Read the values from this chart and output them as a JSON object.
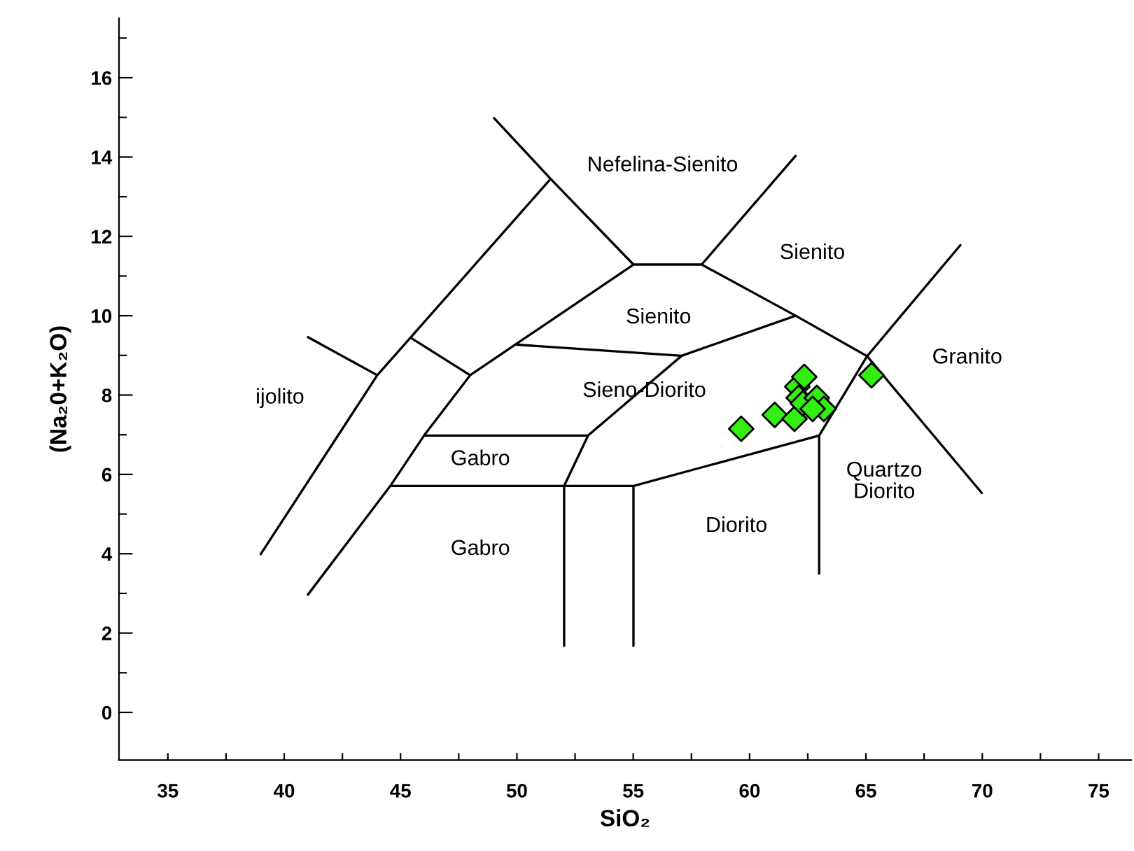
{
  "chart_data": {
    "type": "scatter",
    "xlabel": "SiO₂",
    "ylabel": "(Na₂0+K₂O)",
    "xlim": [
      32.9,
      76.4
    ],
    "ylim": [
      -1.2,
      17.5
    ],
    "xticks": [
      35,
      {
        "value": 37.5,
        "label": null
      },
      40,
      {
        "value": 42.5,
        "label": null
      },
      45,
      {
        "value": 47.5,
        "label": null
      },
      50,
      {
        "value": 52.5,
        "label": null
      },
      55,
      {
        "value": 57.5,
        "label": null
      },
      60,
      {
        "value": 62.5,
        "label": null
      },
      65,
      {
        "value": 67.5,
        "label": null
      },
      70,
      {
        "value": 72.5,
        "label": null
      },
      75
    ],
    "yticks": [
      0,
      {
        "value": 1,
        "label": null
      },
      2,
      {
        "value": 3,
        "label": null
      },
      4,
      {
        "value": 5,
        "label": null
      },
      6,
      {
        "value": 7,
        "label": null
      },
      8,
      {
        "value": 9,
        "label": null
      },
      10,
      {
        "value": 11,
        "label": null
      },
      12,
      {
        "value": 13,
        "label": null
      },
      14,
      {
        "value": 15,
        "label": null
      },
      16,
      {
        "value": 17,
        "label": null
      }
    ],
    "grid": false,
    "legend": false,
    "series": [
      {
        "type": "line",
        "color": "#000000",
        "marker": "none",
        "x": [
          49.02,
          51.45,
          55.01,
          null,
          55.01,
          57.94,
          null,
          57.94,
          61.98,
          null,
          57.94,
          61.98,
          65.05,
          null,
          65.05,
          69.06,
          null,
          65.05,
          69.98,
          null,
          65.05,
          62.99,
          62.99,
          null,
          62.99,
          55.01,
          55.01,
          null,
          52.03,
          52.03,
          null,
          44.56,
          55.01,
          null,
          41.02,
          44.56,
          46.01,
          47.99,
          55.01,
          null,
          46.01,
          53.06,
          52.03,
          null,
          53.06,
          57.08,
          61.98,
          null,
          49.99,
          57.08,
          null,
          45.45,
          47.99,
          null,
          38.99,
          44.0,
          51.45,
          null,
          41.02,
          44.0
        ],
        "values": [
          14.98,
          13.45,
          11.29,
          null,
          11.29,
          11.29,
          null,
          11.29,
          14.03,
          null,
          11.29,
          10.0,
          8.98,
          null,
          8.98,
          11.78,
          null,
          8.98,
          5.53,
          null,
          8.98,
          6.98,
          3.5,
          null,
          6.98,
          5.71,
          1.68,
          null,
          5.71,
          1.68,
          null,
          5.71,
          5.71,
          null,
          2.97,
          5.71,
          6.98,
          8.5,
          11.29,
          null,
          6.98,
          6.98,
          5.71,
          null,
          6.98,
          8.99,
          10.0,
          null,
          9.27,
          8.99,
          null,
          9.44,
          8.5,
          null,
          3.99,
          8.5,
          13.45,
          null,
          9.46,
          8.5
        ]
      },
      {
        "color": "#33ee11",
        "marker": "diamond",
        "x": [
          59.64,
          61.08,
          61.93,
          62.05,
          62.35,
          62.11,
          62.29,
          62.89,
          63.19,
          62.71,
          65.24
        ],
        "values": [
          7.15,
          7.5,
          7.4,
          8.21,
          8.46,
          7.93,
          7.79,
          7.93,
          7.65,
          7.65,
          8.5
        ]
      }
    ],
    "annotations": [
      "Nefelina-Sienito",
      "Sienito",
      "Sienito",
      "Granito",
      "ijolito",
      "Sieno-Diorito",
      "Gabro",
      "Gabro",
      "Diorito",
      "Quartzo\nDiorito"
    ]
  }
}
